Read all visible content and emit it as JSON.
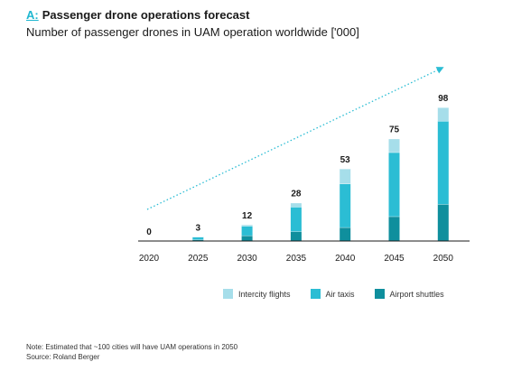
{
  "header": {
    "tag": "A:",
    "title": "Passenger drone operations forecast",
    "subtitle": "Number of passenger drones in UAM operation worldwide ['000]"
  },
  "chart_data": {
    "type": "bar",
    "stacked": true,
    "categories": [
      "2020",
      "2025",
      "2030",
      "2035",
      "2040",
      "2045",
      "2050"
    ],
    "totals": [
      "0",
      "3",
      "12",
      "28",
      "53",
      "75",
      "98"
    ],
    "series": [
      {
        "name": "Airport shuttles",
        "color": "#0f8f9d",
        "values": [
          0,
          1,
          4,
          7,
          10,
          18,
          27
        ]
      },
      {
        "name": "Air taxis",
        "color": "#2bbdd4",
        "values": [
          0,
          2,
          7,
          18,
          32,
          47,
          61
        ]
      },
      {
        "name": "Intercity flights",
        "color": "#a6deea",
        "values": [
          0,
          0,
          1,
          3,
          11,
          10,
          10
        ]
      }
    ],
    "ylim": [
      0,
      100
    ],
    "trend_arrow": true,
    "legend": [
      "Intercity flights",
      "Air taxis",
      "Airport shuttles"
    ]
  },
  "footer": {
    "note": "Note: Estimated that ~100 cities will have UAM operations in 2050",
    "source": "Source: Roland Berger"
  }
}
